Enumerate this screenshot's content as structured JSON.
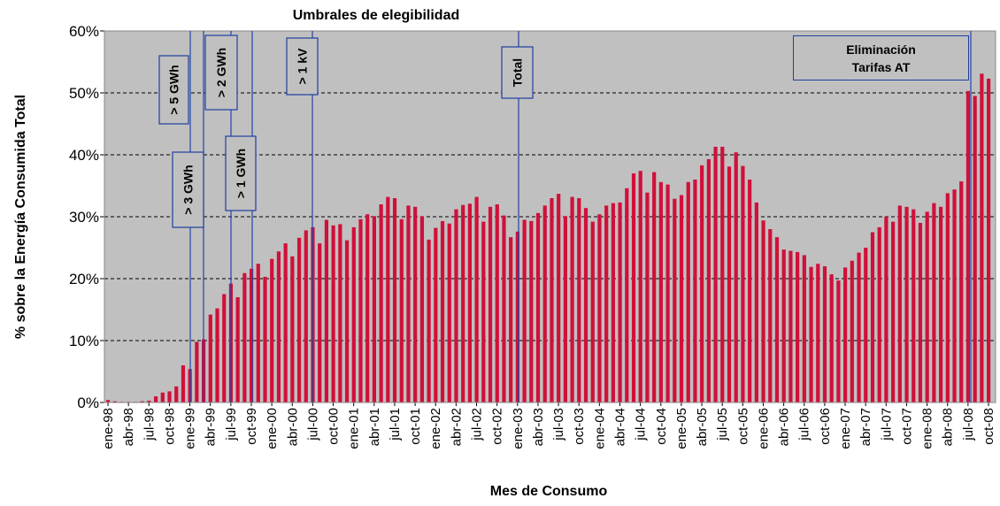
{
  "chart_data": {
    "type": "bar",
    "title": "Umbrales de elegibilidad",
    "x_label": "Mes de Consumo",
    "y_label": "% sobre la Energía Consumida Total",
    "color": "#d0103a",
    "background": "#c0c0c0",
    "grid": true,
    "categories": [
      "ene-98",
      null,
      null,
      "abr-98",
      null,
      null,
      "jul-98",
      null,
      null,
      "oct-98",
      null,
      null,
      "ene-99",
      null,
      null,
      "abr-99",
      null,
      null,
      "jul-99",
      null,
      null,
      "oct-99",
      null,
      null,
      "ene-00",
      null,
      null,
      "abr-00",
      null,
      null,
      "jul-00",
      null,
      null,
      "oct-00",
      null,
      null,
      "ene-01",
      null,
      null,
      "abr-01",
      null,
      null,
      "jul-01",
      null,
      null,
      "oct-01",
      null,
      null,
      "ene-02",
      null,
      null,
      "abr-02",
      null,
      null,
      "jul-02",
      null,
      null,
      "oct-02",
      null,
      null,
      "ene-03",
      null,
      null,
      "abr-03",
      null,
      null,
      "jul-03",
      null,
      null,
      "oct-03",
      null,
      null,
      "ene-04",
      null,
      null,
      "abr-04",
      null,
      null,
      "jul-04",
      null,
      null,
      "oct-04",
      null,
      null,
      "ene-05",
      null,
      null,
      "abr-05",
      null,
      null,
      "jul-05",
      null,
      null,
      "oct-05",
      null,
      null,
      "ene-06",
      null,
      null,
      "abr-06",
      null,
      null,
      "jul-06",
      null,
      null,
      "oct-06",
      null,
      null,
      "ene-07",
      null,
      null,
      "abr-07",
      null,
      null,
      "jul-07",
      null,
      null,
      "oct-07",
      null,
      null,
      "ene-08",
      null,
      null,
      "abr-08",
      null,
      null,
      "jul-08",
      null,
      null,
      "oct-08"
    ],
    "values": [
      0.4,
      0.2,
      0.1,
      0.1,
      0.1,
      0.2,
      0.3,
      1.0,
      1.6,
      1.8,
      2.6,
      6.0,
      5.4,
      9.8,
      10.2,
      14.2,
      15.2,
      17.5,
      19.2,
      17.0,
      20.9,
      21.6,
      22.4,
      20.3,
      23.2,
      24.4,
      25.7,
      23.6,
      26.6,
      27.8,
      28.3,
      25.7,
      29.5,
      28.6,
      28.8,
      26.2,
      28.3,
      29.6,
      30.4,
      30.1,
      32.0,
      33.2,
      33.0,
      29.6,
      31.8,
      31.6,
      30.1,
      26.3,
      28.2,
      29.3,
      28.9,
      31.2,
      31.9,
      32.1,
      33.2,
      29.2,
      31.6,
      32.0,
      30.2,
      26.7,
      27.6,
      29.5,
      29.3,
      30.6,
      31.8,
      33.0,
      33.7,
      30.1,
      33.2,
      33.0,
      31.4,
      29.2,
      30.4,
      31.8,
      32.2,
      32.3,
      34.6,
      37.0,
      37.4,
      33.9,
      37.2,
      35.6,
      35.2,
      32.9,
      33.5,
      35.6,
      36.0,
      38.3,
      39.3,
      41.3,
      41.3,
      38.1,
      40.4,
      38.2,
      36.0,
      32.3,
      29.4,
      28.0,
      26.7,
      24.7,
      24.5,
      24.3,
      23.8,
      21.9,
      22.4,
      22.0,
      20.7,
      19.7,
      21.8,
      22.9,
      24.2,
      25.0,
      27.5,
      28.3,
      30.0,
      29.2,
      31.8,
      31.6,
      31.2,
      29.0,
      30.8,
      32.2,
      31.6,
      33.8,
      34.4,
      35.7,
      50.3,
      49.5,
      53.1,
      52.3
    ],
    "ylim": [
      0,
      60
    ],
    "yticks": [
      {
        "value": 0,
        "label": "0%"
      },
      {
        "value": 10,
        "label": "10%"
      },
      {
        "value": 20,
        "label": "20%"
      },
      {
        "value": 30,
        "label": "30%"
      },
      {
        "value": 40,
        "label": "40%"
      },
      {
        "value": 50,
        "label": "50%"
      },
      {
        "value": 60,
        "label": "60%"
      }
    ],
    "annotations": [
      "> 5 GWh",
      "> 3 GWh",
      "> 2 GWh",
      "> 1 GWh",
      "> 1 kV",
      "Total",
      "Eliminación Tarifas AT"
    ]
  }
}
